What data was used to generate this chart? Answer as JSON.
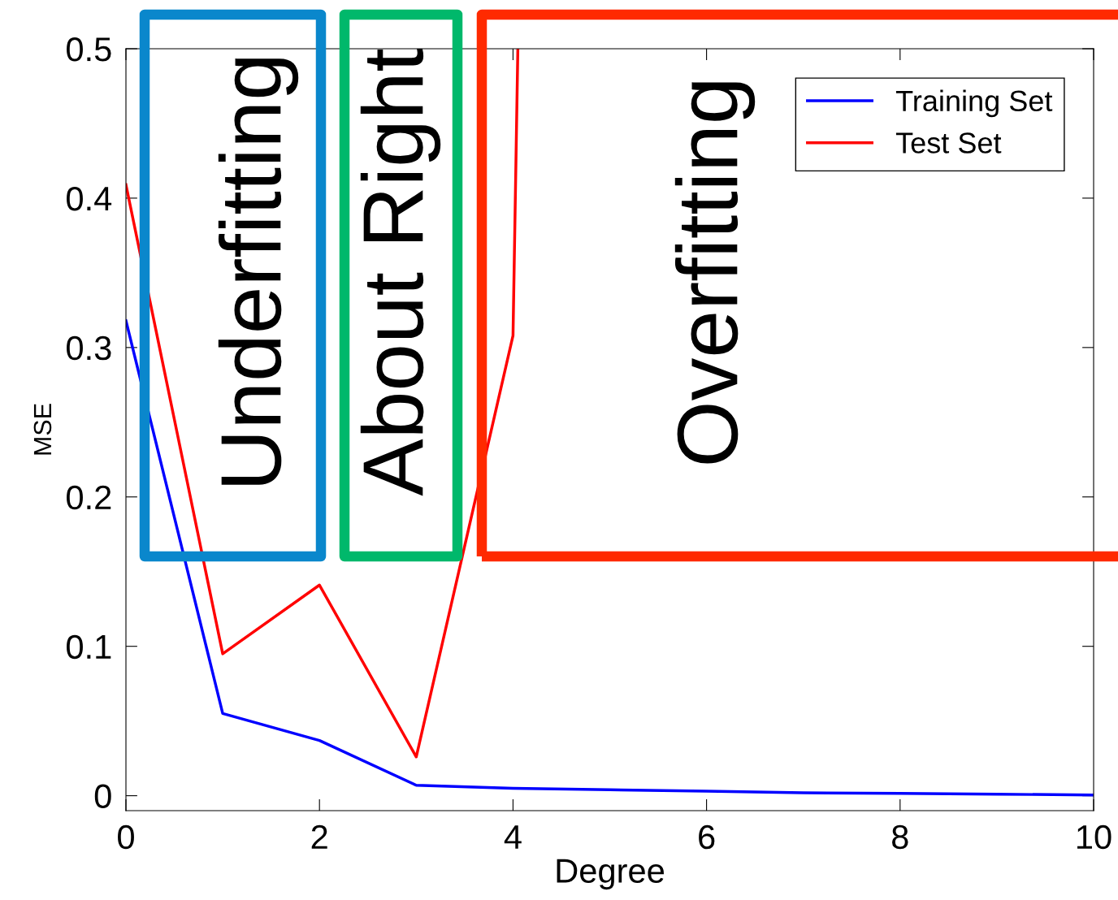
{
  "chart_data": {
    "type": "line",
    "xlabel": "Degree",
    "ylabel": "MSE",
    "xlim": [
      0,
      10
    ],
    "ylim": [
      -0.01,
      0.5
    ],
    "xticks": [
      0,
      2,
      4,
      6,
      8,
      10
    ],
    "yticks": [
      0,
      0.1,
      0.2,
      0.3,
      0.4,
      0.5
    ],
    "series": [
      {
        "name": "Training Set",
        "color": "#0000ff",
        "x": [
          0,
          1,
          2,
          3,
          4,
          5,
          6,
          7,
          8,
          9,
          10
        ],
        "values": [
          0.318,
          0.055,
          0.037,
          0.007,
          0.005,
          0.004,
          0.003,
          0.002,
          0.0015,
          0.001,
          0.0005
        ]
      },
      {
        "name": "Test Set",
        "color": "#ff0000",
        "x": [
          0,
          1,
          2,
          3,
          4,
          4.05
        ],
        "values": [
          0.409,
          0.095,
          0.141,
          0.026,
          0.308,
          0.5
        ]
      }
    ],
    "annotations": [
      "Underfitting",
      "About Right",
      "Overfitting"
    ],
    "legend": "top right",
    "grid": false,
    "line_style": "solid"
  }
}
